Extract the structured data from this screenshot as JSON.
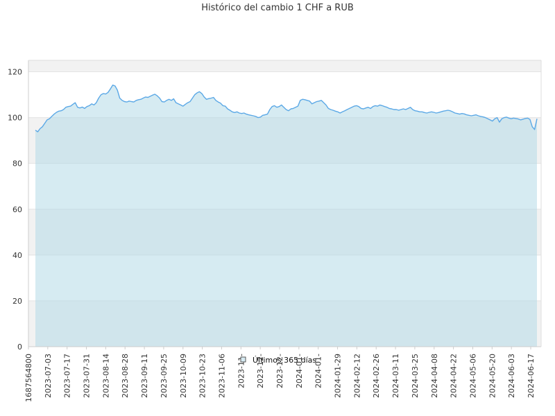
{
  "chart_data": {
    "type": "area",
    "title": "Histórico del cambio 1 CHF a RUB",
    "ylim": [
      0,
      125
    ],
    "yticks": [
      0,
      20,
      40,
      60,
      80,
      100,
      120
    ],
    "grid": true,
    "legend_position": "bottom-center",
    "xtick_labels": [
      "1687564800",
      "2023-07-03",
      "2023-07-17",
      "2023-07-31",
      "2023-08-14",
      "2023-08-28",
      "2023-09-11",
      "2023-09-25",
      "2023-10-09",
      "2023-10-23",
      "2023-11-06",
      "2023-11-",
      "2023-12-",
      "2023-12-",
      "2024-01-",
      "2024-01-",
      "2024-01-29",
      "2024-02-12",
      "2024-02-26",
      "2024-03-11",
      "2024-03-25",
      "2024-04-08",
      "2024-04-22",
      "2024-05-06",
      "2024-05-20",
      "2024-06-03",
      "2024-06-17"
    ],
    "series": [
      {
        "name": "Últimos 365 días",
        "values": [
          94.5,
          93.8,
          95.2,
          96.0,
          97.5,
          99.0,
          99.5,
          100.5,
          101.5,
          102.3,
          102.8,
          103.0,
          103.5,
          104.5,
          104.8,
          105.0,
          105.8,
          106.5,
          104.5,
          104.2,
          104.6,
          104.0,
          104.8,
          105.2,
          106.0,
          105.5,
          106.5,
          108.5,
          110.0,
          110.5,
          110.3,
          111.0,
          112.5,
          114.2,
          113.8,
          112.0,
          108.5,
          107.5,
          107.0,
          106.8,
          107.2,
          107.0,
          106.8,
          107.5,
          107.8,
          108.0,
          108.5,
          109.0,
          108.8,
          109.3,
          109.8,
          110.2,
          109.5,
          108.5,
          107.0,
          106.8,
          107.5,
          108.0,
          107.5,
          108.2,
          106.5,
          106.0,
          105.5,
          105.0,
          105.8,
          106.5,
          107.0,
          108.5,
          110.0,
          110.8,
          111.3,
          110.5,
          109.0,
          108.0,
          108.3,
          108.5,
          108.8,
          107.5,
          106.8,
          106.3,
          105.2,
          105.0,
          103.8,
          103.2,
          102.5,
          102.2,
          102.5,
          102.0,
          101.8,
          102.0,
          101.5,
          101.2,
          101.0,
          100.8,
          100.5,
          100.0,
          100.2,
          101.0,
          101.2,
          101.5,
          103.5,
          104.8,
          105.2,
          104.5,
          104.8,
          105.5,
          104.5,
          103.5,
          103.0,
          103.8,
          104.0,
          104.5,
          105.0,
          107.5,
          108.0,
          107.8,
          107.5,
          107.2,
          106.0,
          106.5,
          107.0,
          107.2,
          107.5,
          106.5,
          105.5,
          104.0,
          103.5,
          103.2,
          102.8,
          102.5,
          102.0,
          102.5,
          103.0,
          103.5,
          104.0,
          104.5,
          105.0,
          105.2,
          104.8,
          104.0,
          103.8,
          104.2,
          104.5,
          104.0,
          104.8,
          105.2,
          105.0,
          105.5,
          105.2,
          104.8,
          104.5,
          104.0,
          103.8,
          103.5,
          103.5,
          103.2,
          103.5,
          103.8,
          103.5,
          104.0,
          104.5,
          103.5,
          103.0,
          102.8,
          102.5,
          102.5,
          102.2,
          102.0,
          102.3,
          102.5,
          102.3,
          102.0,
          102.2,
          102.5,
          102.8,
          103.0,
          103.2,
          103.0,
          102.5,
          102.0,
          101.8,
          101.5,
          101.8,
          101.6,
          101.2,
          101.0,
          100.8,
          101.0,
          101.2,
          100.8,
          100.5,
          100.3,
          100.0,
          99.5,
          99.0,
          98.5,
          99.5,
          100.0,
          98.0,
          99.5,
          100.0,
          100.2,
          99.8,
          99.5,
          99.8,
          99.6,
          99.4,
          99.0,
          99.3,
          99.6,
          99.8,
          99.2,
          96.0,
          94.8,
          99.5
        ]
      }
    ],
    "colors": {
      "line": "#5ba8e6",
      "area": "#d7ebf3",
      "band": "#f2f2f2",
      "grid": "#e3e3e3"
    }
  }
}
